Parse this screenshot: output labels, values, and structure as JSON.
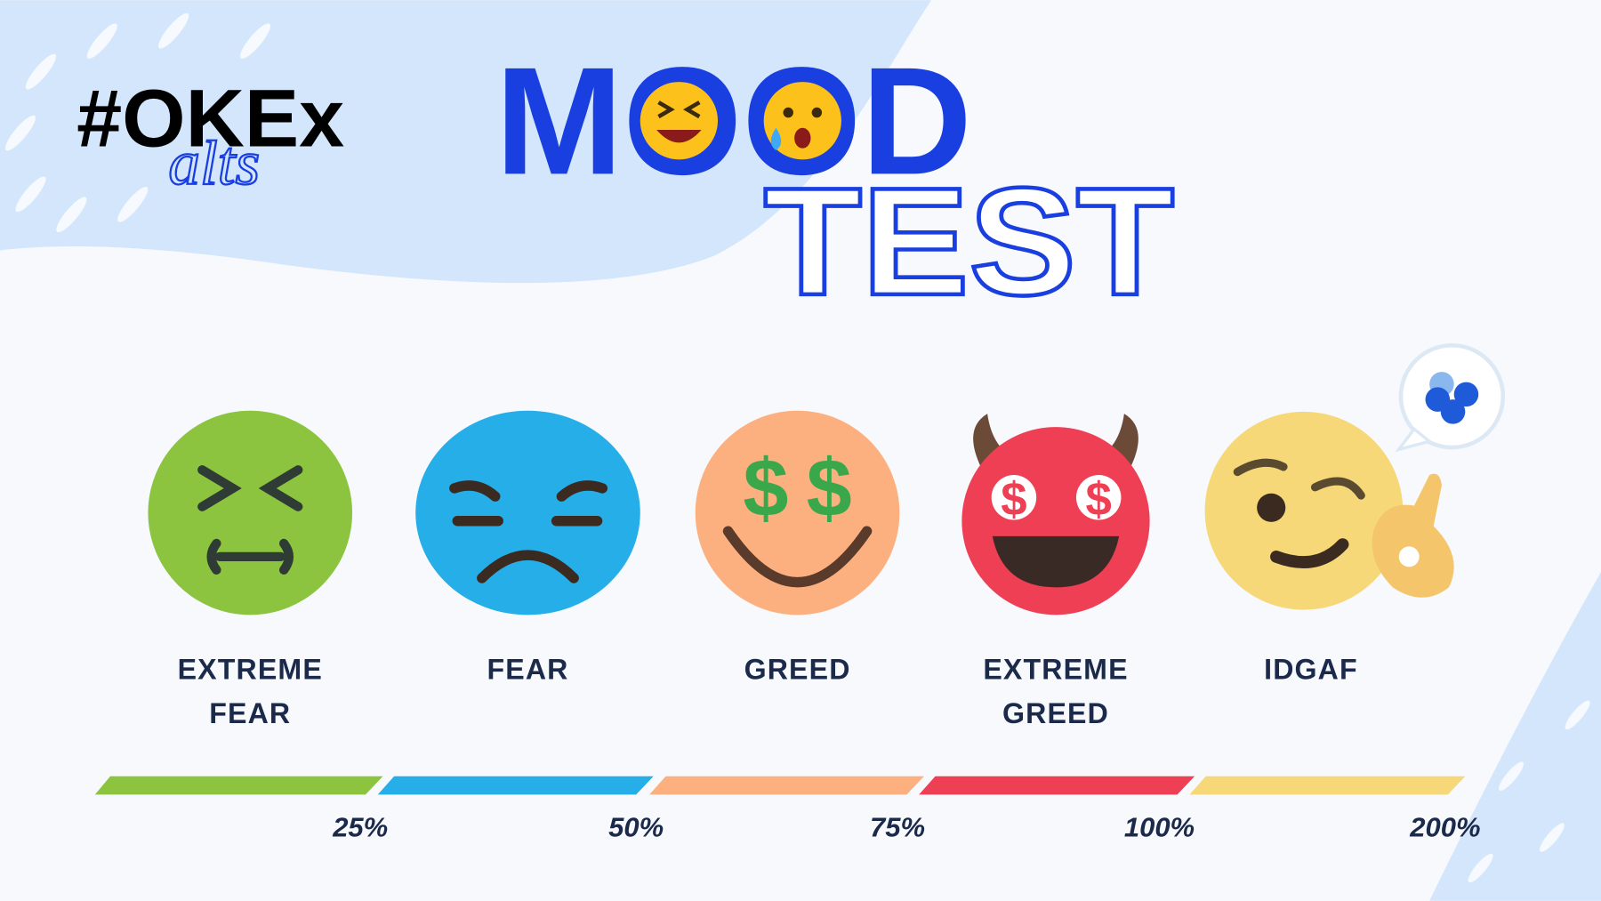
{
  "brand": "#OKEx",
  "brand_sub": "alts",
  "title": "MOOD",
  "subtitle": "TEST",
  "moods": [
    {
      "label": [
        "EXTREME",
        "FEAR"
      ],
      "percent": "25%"
    },
    {
      "label": [
        "FEAR"
      ],
      "percent": "50%"
    },
    {
      "label": [
        "GREED"
      ],
      "percent": "75%"
    },
    {
      "label": [
        "EXTREME",
        "GREED"
      ],
      "percent": "100%"
    },
    {
      "label": [
        "IDGAF"
      ],
      "percent": "200%"
    }
  ]
}
